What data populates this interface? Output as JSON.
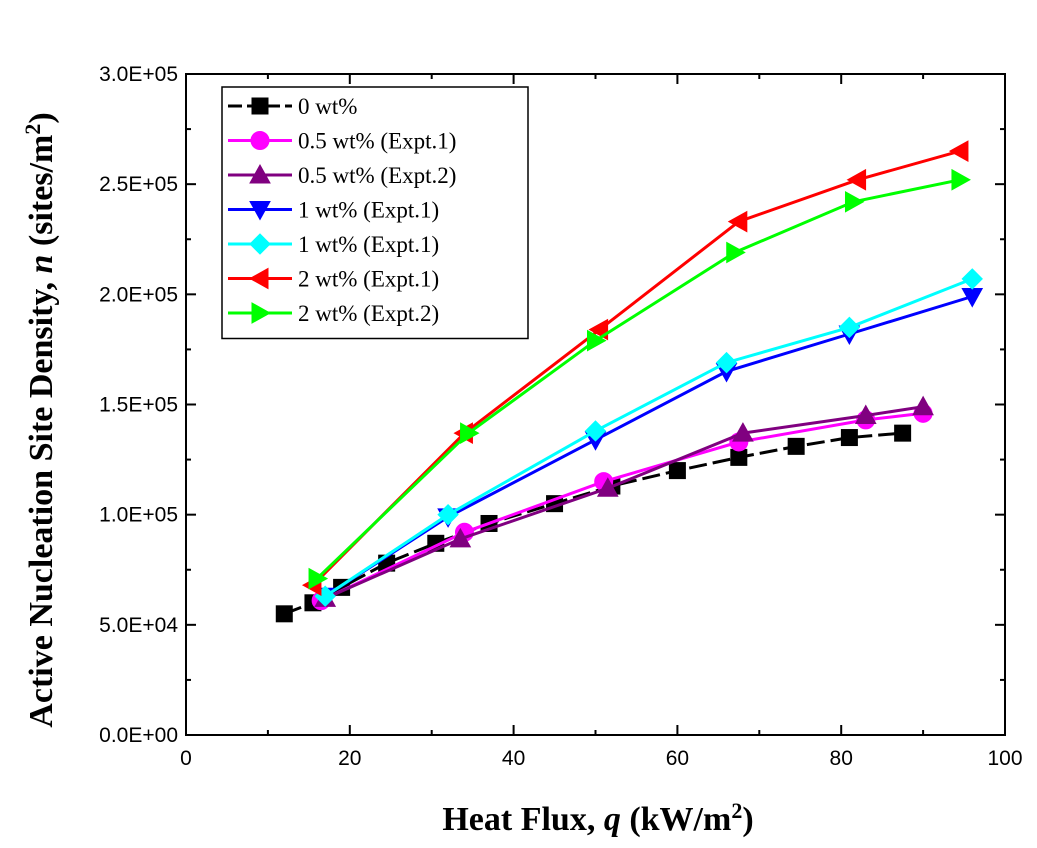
{
  "chart_data": {
    "type": "line",
    "xlabel": "Heat Flux, q (kW/m2)",
    "ylabel": "Active Nucleation Site Density, n (sites/m2)",
    "xlim": [
      0,
      100
    ],
    "ylim": [
      0,
      300000
    ],
    "x_ticks": [
      0,
      20,
      40,
      60,
      80,
      100
    ],
    "y_ticks": [
      0,
      50000,
      100000,
      150000,
      200000,
      250000,
      300000
    ],
    "x_tick_labels": [
      "0",
      "20",
      "40",
      "60",
      "80",
      "100"
    ],
    "y_tick_labels": [
      "0.0E+00",
      "5.0E+04",
      "1.0E+05",
      "1.5E+05",
      "2.0E+05",
      "2.5E+05",
      "3.0E+05"
    ],
    "grid": false,
    "legend_position": "top-left",
    "axis_title_parts": {
      "x": {
        "pre": "Heat Flux, ",
        "var": "q",
        "unit": " (kW/m",
        "sup": "2",
        "close": ")"
      },
      "y": {
        "pre": "Active Nucleation Site Density, ",
        "var": "n",
        "unit": " (sites/m",
        "sup": "2",
        "close": ")"
      }
    },
    "series": [
      {
        "name": "0 wt%",
        "color": "#000000",
        "marker": "square",
        "x": [
          12,
          15.5,
          19,
          24.5,
          30.5,
          37,
          45,
          52,
          60,
          67.5,
          74.5,
          81,
          87.5
        ],
        "y": [
          55000,
          60000,
          67000,
          78000,
          87000,
          96000,
          105000,
          113000,
          120000,
          126000,
          131000,
          135000,
          137000
        ]
      },
      {
        "name": "0.5 wt% (Expt.1)",
        "color": "#ff00ff",
        "marker": "circle",
        "x": [
          16.5,
          34,
          51,
          67.5,
          83,
          90
        ],
        "y": [
          61000,
          92000,
          115000,
          133000,
          143000,
          146000
        ]
      },
      {
        "name": "0.5 wt% (Expt.2)",
        "color": "#800080",
        "marker": "triangle-up",
        "x": [
          17,
          33.5,
          51.5,
          68,
          83,
          90
        ],
        "y": [
          62000,
          89000,
          112000,
          137000,
          145000,
          149000
        ]
      },
      {
        "name": "1 wt% (Expt.1)",
        "color": "#0000ff",
        "marker": "triangle-down",
        "x": [
          17,
          32,
          50,
          66,
          81,
          96
        ],
        "y": [
          63000,
          99000,
          134000,
          165000,
          182000,
          199000
        ]
      },
      {
        "name": "1 wt% (Expt.1)",
        "color": "#00ffff",
        "marker": "diamond",
        "x": [
          17,
          32,
          50,
          66,
          81,
          96
        ],
        "y": [
          63000,
          100000,
          138000,
          169000,
          185000,
          207000
        ]
      },
      {
        "name": "2 wt% (Expt.1)",
        "color": "#ff0000",
        "marker": "triangle-left",
        "x": [
          15.5,
          34,
          50.5,
          67.5,
          82,
          94.5
        ],
        "y": [
          68000,
          137000,
          184000,
          233000,
          252000,
          265000
        ]
      },
      {
        "name": "2 wt% (Expt.2)",
        "color": "#00ff00",
        "marker": "triangle-right",
        "x": [
          16,
          34.5,
          50,
          67,
          81.5,
          94.5
        ],
        "y": [
          71000,
          137000,
          179000,
          219000,
          242000,
          252000
        ]
      }
    ]
  }
}
